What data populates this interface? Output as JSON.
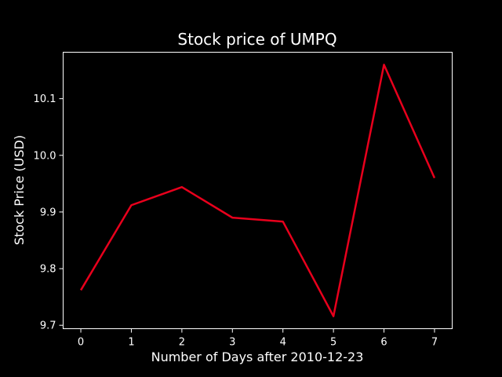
{
  "chart_data": {
    "type": "line",
    "title": "Stock price of UMPQ",
    "xlabel": "Number of Days after 2010-12-23",
    "ylabel": "Stock Price (USD)",
    "x": [
      0,
      1,
      2,
      3,
      4,
      5,
      6,
      7
    ],
    "series": [
      {
        "values": [
          9.762,
          9.912,
          9.944,
          9.89,
          9.883,
          9.716,
          10.16,
          9.96
        ],
        "color": "#e8001c"
      }
    ],
    "xlim": [
      -0.35,
      7.35
    ],
    "ylim": [
      9.694,
      10.182
    ],
    "xticks": [
      0,
      1,
      2,
      3,
      4,
      5,
      6,
      7
    ],
    "yticks": [
      9.7,
      9.8,
      9.9,
      10.0,
      10.1
    ],
    "ytick_labels": [
      "9.7",
      "9.8",
      "9.9",
      "10.0",
      "10.1"
    ],
    "grid": false,
    "background": "#000000",
    "foreground": "#ffffff"
  }
}
